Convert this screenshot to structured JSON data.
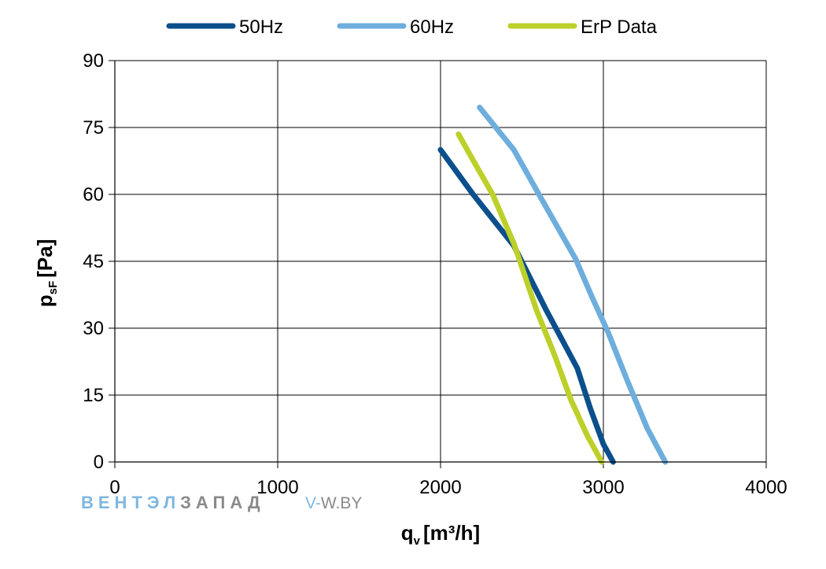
{
  "chart_data": {
    "type": "line",
    "title": "",
    "xlabel": {
      "main": "q",
      "sub": "v",
      "unit": "[m³/h]"
    },
    "ylabel": {
      "main": "p",
      "sub": "sF",
      "unit": "[Pa]"
    },
    "xlim": [
      0,
      4000
    ],
    "ylim": [
      0,
      90
    ],
    "xticks": [
      "0",
      "1000",
      "2000",
      "3000",
      "4000"
    ],
    "yticks": [
      "0",
      "15",
      "30",
      "45",
      "60",
      "75",
      "90"
    ],
    "grid": true,
    "legend_position": "top",
    "series": [
      {
        "name": "50Hz",
        "color": "#0B4F8C",
        "x": [
          2000,
          2200,
          2450,
          2650,
          2840,
          2920,
          3000,
          3060
        ],
        "y": [
          70,
          60,
          48.5,
          34,
          21,
          12,
          4,
          0
        ]
      },
      {
        "name": "60Hz",
        "color": "#6EAEDD",
        "x": [
          2240,
          2450,
          2620,
          2830,
          2930,
          3030,
          3150,
          3270,
          3380
        ],
        "y": [
          79.5,
          70,
          59,
          45.5,
          37,
          29,
          18,
          7.5,
          0
        ]
      },
      {
        "name": "ErP Data",
        "color": "#BDD02A",
        "x": [
          2110,
          2210,
          2320,
          2450,
          2590,
          2700,
          2800,
          2900,
          2990
        ],
        "y": [
          73.5,
          67,
          60,
          49,
          34,
          24,
          14,
          6,
          0
        ]
      }
    ]
  },
  "watermark": {
    "brand_part1": "ВЕНТЭЛ",
    "brand_part2": "ЗАПАД",
    "site_part1": "V-",
    "site_part2": "W.BY",
    "color1": "#7FB7E0",
    "color2": "#8A8A8A"
  }
}
